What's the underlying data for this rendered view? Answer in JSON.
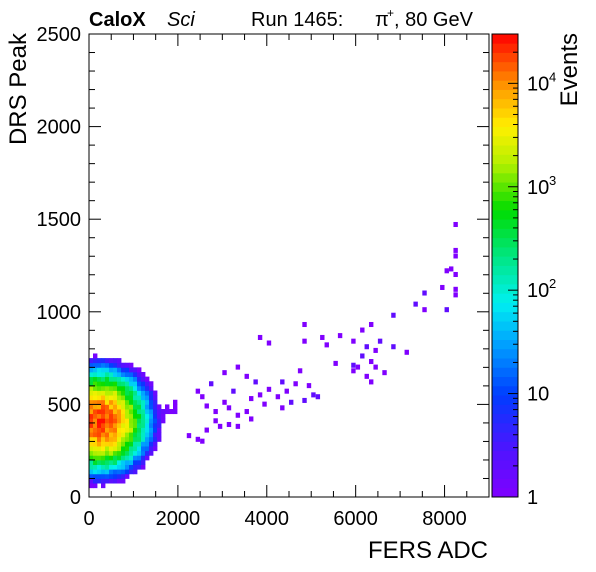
{
  "header": {
    "experiment": "CaloX",
    "subtitle": "Sci",
    "run_label": "Run 1465:",
    "beam_particle": "π",
    "beam_charge": "+",
    "beam_info": ", 80 GeV"
  },
  "chart_data": {
    "type": "heatmap",
    "title": "",
    "xlabel": "FERS ADC",
    "ylabel": "DRS Peak",
    "zlabel": "Events",
    "xlim": [
      0,
      9000
    ],
    "ylim": [
      0,
      2500
    ],
    "zlim": [
      1,
      30000
    ],
    "z_scale": "log",
    "x_ticks": [
      "0",
      "2000",
      "4000",
      "6000",
      "8000"
    ],
    "y_ticks": [
      "0",
      "500",
      "1000",
      "1500",
      "2000",
      "2500"
    ],
    "z_ticks": [
      {
        "base": "1",
        "exp": "",
        "value": 1
      },
      {
        "base": "10",
        "exp": "",
        "value": 10
      },
      {
        "base": "10",
        "exp": "2",
        "value": 100
      },
      {
        "base": "10",
        "exp": "3",
        "value": 1000
      },
      {
        "base": "10",
        "exp": "4",
        "value": 10000
      }
    ],
    "bin_width": [
      90,
      25
    ],
    "core": {
      "description": "dense core of events near FERS ADC ≈ 200, DRS Peak ≈ 400",
      "center": [
        200,
        400
      ],
      "peak_events": 20000
    },
    "sparse_points": [
      [
        8200,
        1460
      ],
      [
        8200,
        1320
      ],
      [
        8200,
        1290
      ],
      [
        8100,
        1220
      ],
      [
        8200,
        1190
      ],
      [
        8000,
        1210
      ],
      [
        7900,
        1120
      ],
      [
        8200,
        1110
      ],
      [
        8200,
        1080
      ],
      [
        7500,
        1090
      ],
      [
        8000,
        1000
      ],
      [
        7500,
        1000
      ],
      [
        7300,
        1030
      ],
      [
        6800,
        970
      ],
      [
        6300,
        920
      ],
      [
        6100,
        890
      ],
      [
        5600,
        860
      ],
      [
        5900,
        830
      ],
      [
        6500,
        830
      ],
      [
        4800,
        920
      ],
      [
        5200,
        850
      ],
      [
        6800,
        800
      ],
      [
        7100,
        770
      ],
      [
        6200,
        800
      ],
      [
        6400,
        780
      ],
      [
        5300,
        810
      ],
      [
        3800,
        850
      ],
      [
        4000,
        820
      ],
      [
        4800,
        830
      ],
      [
        6100,
        750
      ],
      [
        6300,
        720
      ],
      [
        5500,
        710
      ],
      [
        5900,
        700
      ],
      [
        6000,
        690
      ],
      [
        6400,
        690
      ],
      [
        6600,
        660
      ],
      [
        5900,
        670
      ],
      [
        6200,
        640
      ],
      [
        6300,
        610
      ],
      [
        4700,
        670
      ],
      [
        4300,
        610
      ],
      [
        4600,
        600
      ],
      [
        4900,
        590
      ],
      [
        4400,
        560
      ],
      [
        5000,
        540
      ],
      [
        4200,
        530
      ],
      [
        4500,
        500
      ],
      [
        4800,
        510
      ],
      [
        5100,
        530
      ],
      [
        3300,
        690
      ],
      [
        3000,
        660
      ],
      [
        3500,
        640
      ],
      [
        3700,
        610
      ],
      [
        3800,
        540
      ],
      [
        4000,
        570
      ],
      [
        3600,
        520
      ],
      [
        3900,
        490
      ],
      [
        4300,
        470
      ],
      [
        3200,
        560
      ],
      [
        3000,
        500
      ],
      [
        3100,
        470
      ],
      [
        2800,
        450
      ],
      [
        3300,
        430
      ],
      [
        3500,
        450
      ],
      [
        3600,
        410
      ],
      [
        2400,
        560
      ],
      [
        2700,
        600
      ],
      [
        2500,
        530
      ],
      [
        2600,
        480
      ],
      [
        2800,
        400
      ],
      [
        2900,
        370
      ],
      [
        3100,
        380
      ],
      [
        3300,
        370
      ],
      [
        2600,
        350
      ],
      [
        2200,
        320
      ],
      [
        2400,
        300
      ],
      [
        2500,
        290
      ]
    ]
  }
}
